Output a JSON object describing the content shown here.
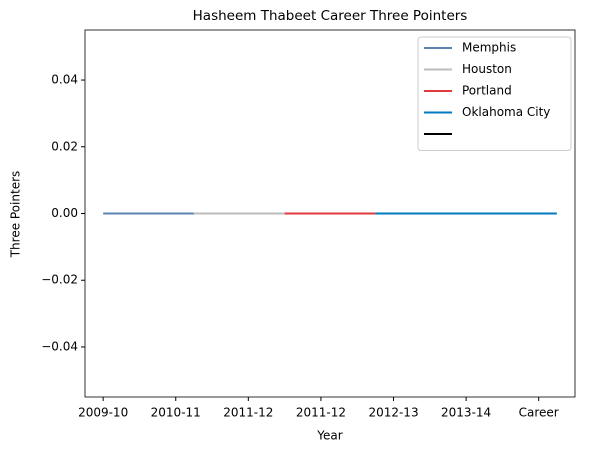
{
  "chart_data": {
    "type": "line",
    "title": "Hasheem Thabeet Career Three Pointers",
    "xlabel": "Year",
    "ylabel": "Three Pointers",
    "xlim": [
      -0.2,
      5.2
    ],
    "xticks": [
      {
        "value": 0,
        "label": "2009-10"
      },
      {
        "value": 0.8,
        "label": "2010-11"
      },
      {
        "value": 1.6,
        "label": "2011-12"
      },
      {
        "value": 2.4,
        "label": "2011-12"
      },
      {
        "value": 3.2,
        "label": "2012-13"
      },
      {
        "value": 4.0,
        "label": "2013-14"
      },
      {
        "value": 4.8,
        "label": "Career"
      }
    ],
    "ylim": [
      -0.055,
      0.055
    ],
    "yticks": [
      {
        "value": -0.04,
        "label": "−0.04"
      },
      {
        "value": -0.02,
        "label": "−0.02"
      },
      {
        "value": 0,
        "label": "0.00"
      },
      {
        "value": 0.02,
        "label": "0.02"
      },
      {
        "value": 0.04,
        "label": "0.04"
      }
    ],
    "legend": "upper right",
    "series": [
      {
        "name": "Memphis",
        "color": "#5b84b1",
        "x": [
          0,
          1
        ],
        "values": [
          0,
          0
        ]
      },
      {
        "name": "Houston",
        "color": "#bebebe",
        "x": [
          1,
          2
        ],
        "values": [
          0,
          0
        ]
      },
      {
        "name": "Portland",
        "color": "#e03a3e",
        "x": [
          2,
          3
        ],
        "values": [
          0,
          0
        ]
      },
      {
        "name": "Oklahoma City",
        "color": "#007ac1",
        "x": [
          3,
          4,
          5
        ],
        "values": [
          0,
          0,
          0
        ]
      },
      {
        "color": "#000000",
        "x": [],
        "values": []
      }
    ]
  }
}
